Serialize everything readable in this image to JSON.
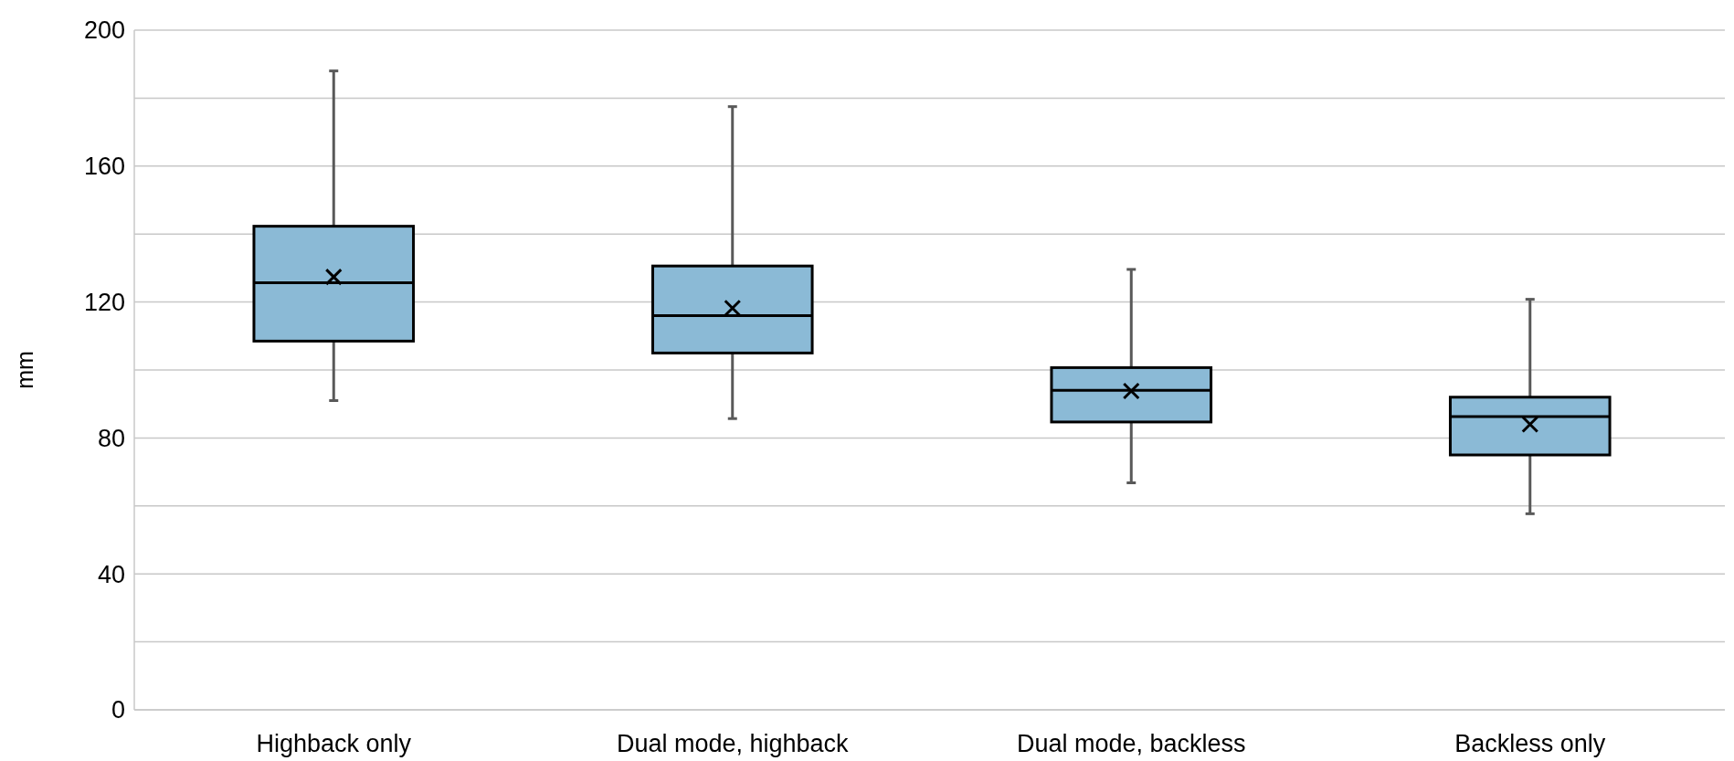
{
  "chart_data": {
    "type": "box",
    "ylabel": "mm",
    "categories": [
      "Highback only",
      "Dual mode, highback",
      "Dual mode, backless",
      "Backless only"
    ],
    "boxes": [
      {
        "low": 91,
        "q1": 108.5,
        "median": 125.7,
        "q3": 142.3,
        "high": 188,
        "mean": 127.4
      },
      {
        "low": 85.7,
        "q1": 105,
        "median": 116,
        "q3": 130.6,
        "high": 177.5,
        "mean": 118.2
      },
      {
        "low": 66.8,
        "q1": 84.7,
        "median": 94,
        "q3": 100.7,
        "high": 129.6,
        "mean": 93.8
      },
      {
        "low": 57.7,
        "q1": 75,
        "median": 86.3,
        "q3": 92,
        "high": 120.8,
        "mean": 84
      }
    ],
    "color": "#8bbad6",
    "ylim": [
      0,
      200
    ],
    "yticks": [
      0,
      {
        "value": 20,
        "label": null
      },
      40,
      {
        "value": 60,
        "label": null
      },
      80,
      {
        "value": 100,
        "label": null
      },
      120,
      {
        "value": 140,
        "label": null
      },
      160,
      {
        "value": 180,
        "label": null
      },
      200
    ],
    "grid": "y",
    "marker": "cross"
  }
}
